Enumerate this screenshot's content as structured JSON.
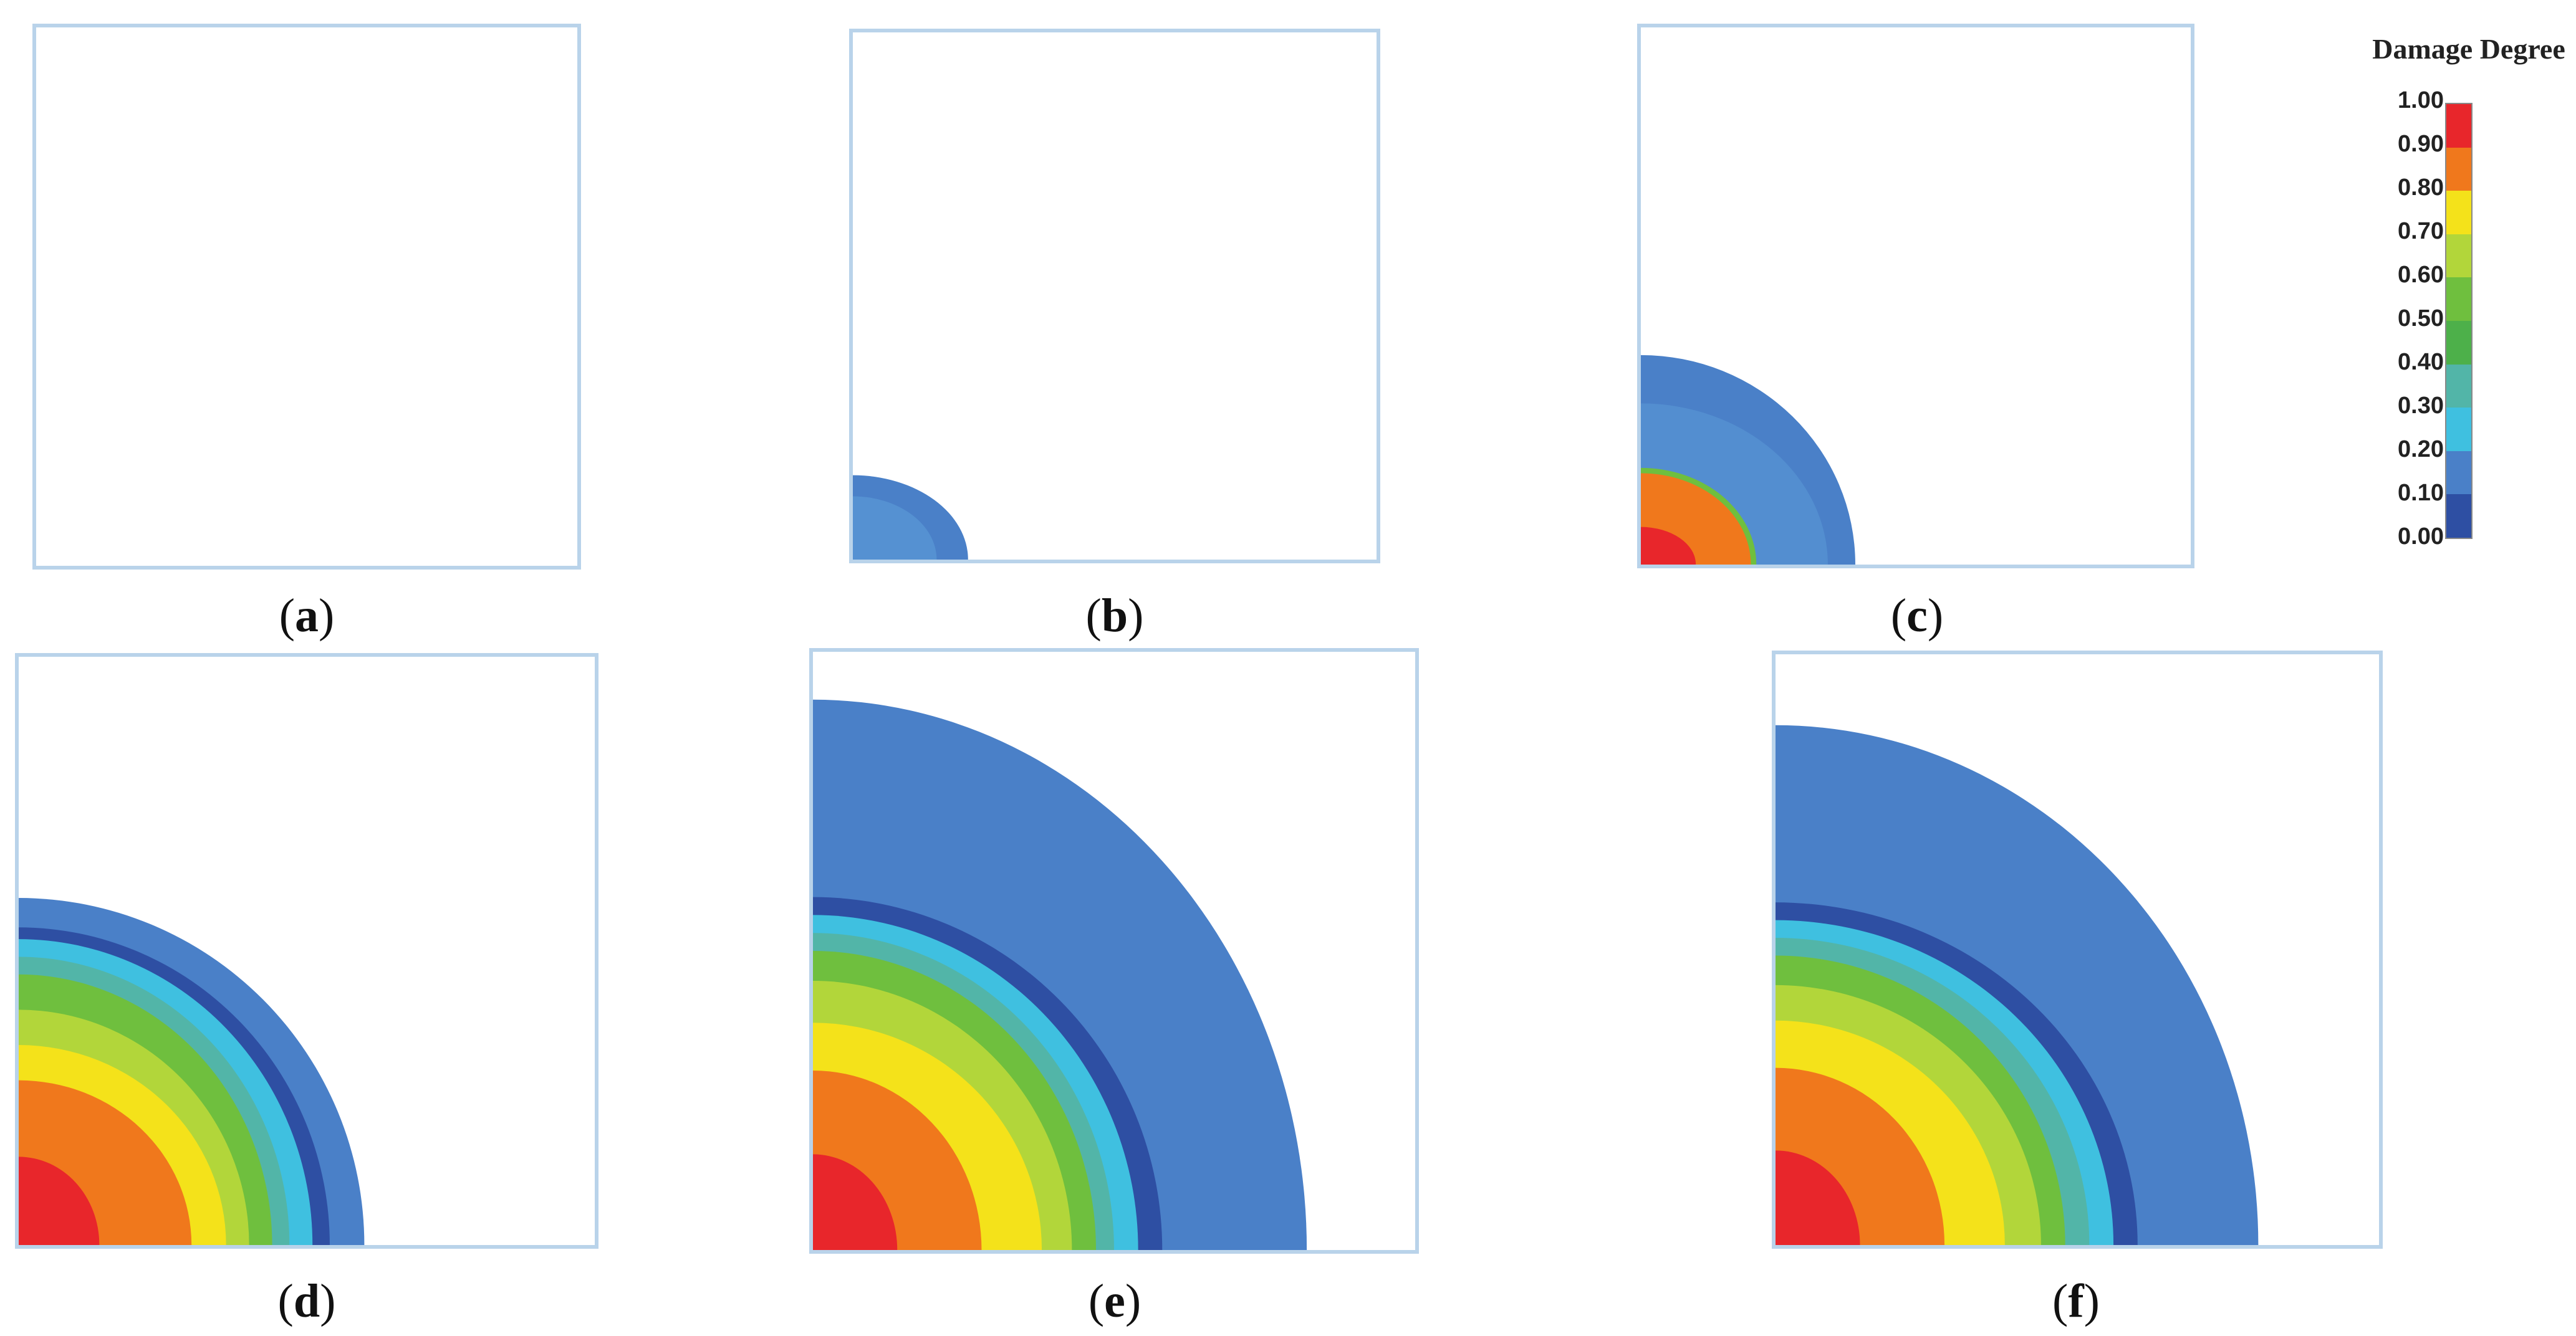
{
  "legend": {
    "title": "Damage Degree",
    "ticks": [
      "1.00",
      "0.90",
      "0.80",
      "0.70",
      "0.60",
      "0.50",
      "0.40",
      "0.30",
      "0.20",
      "0.10",
      "0.00"
    ],
    "colors": [
      "#e8262b",
      "#f0781c",
      "#f4e21a",
      "#b2d63a",
      "#6fbf3e",
      "#4db04a",
      "#52b5a8",
      "#3fc0e0",
      "#4a80c8",
      "#2e4fa3"
    ]
  },
  "panels": [
    {
      "id": "a",
      "label": "a"
    },
    {
      "id": "b",
      "label": "b"
    },
    {
      "id": "c",
      "label": "c"
    },
    {
      "id": "d",
      "label": "d"
    },
    {
      "id": "e",
      "label": "e"
    },
    {
      "id": "f",
      "label": "f"
    }
  ]
}
